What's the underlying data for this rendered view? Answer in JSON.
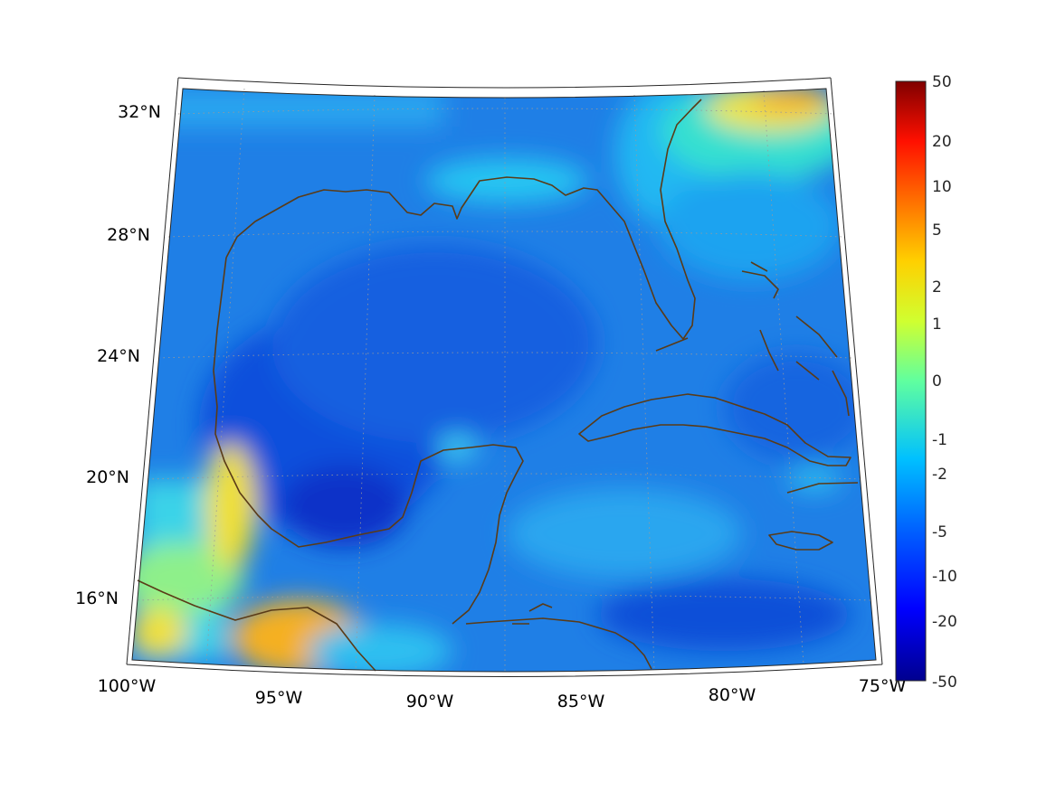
{
  "map": {
    "lat_labels": [
      "32°N",
      "28°N",
      "24°N",
      "20°N",
      "16°N"
    ],
    "lon_labels": [
      "100°W",
      "95°W",
      "90°W",
      "85°W",
      "80°W",
      "75°W"
    ]
  },
  "colorbar": {
    "labels": [
      "50",
      "20",
      "10",
      "5",
      "2",
      "1",
      "0",
      "-1",
      "-2",
      "-5",
      "-10",
      "-20",
      "-50"
    ],
    "colormap": [
      "#00008f",
      "#0000ff",
      "#0080ff",
      "#00ffff",
      "#80ff80",
      "#ffff00",
      "#ff8000",
      "#ff0000",
      "#800000"
    ]
  },
  "colors": {
    "coastline": "#5a3b17",
    "background_field": "#1f7fe6",
    "deep_blue": "#0a3fd6",
    "cyan": "#21c7f2",
    "yellow": "#f2f230",
    "orange": "#f7a519"
  }
}
